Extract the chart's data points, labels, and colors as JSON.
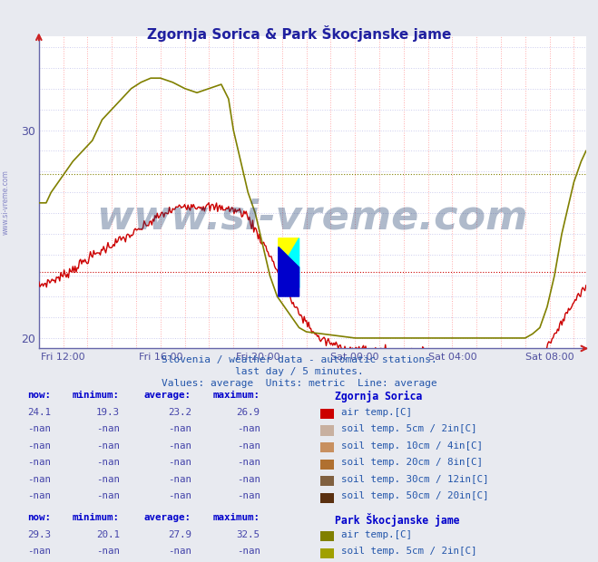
{
  "title": "Zgornja Sorica & Park Škocjanske jame",
  "bg_color": "#e8eaf0",
  "plot_bg_color": "#ffffff",
  "grid_color_h": "#ddddff",
  "grid_color_v": "#ffcccc",
  "x_tick_labels": [
    "Fri 12:00",
    "Fri 16:00",
    "Fri 20:00",
    "Sat 00:00",
    "Sat 04:00",
    "Sat 08:00"
  ],
  "ylim": [
    19.5,
    34.5
  ],
  "yticks": [
    20,
    30
  ],
  "ylabel_color": "#5050a0",
  "xlabel_color": "#5050a0",
  "title_color": "#2020a0",
  "avg_line_red": 23.2,
  "avg_line_olive": 27.9,
  "watermark": "www.si-vreme.com",
  "subtitle1": "Slovenia / weather data - automatic stations.",
  "subtitle2": "last day / 5 minutes.",
  "subtitle3": "Values: average  Units: metric  Line: average",
  "station1_name": "Zgornja Sorica",
  "station2_name": "Park Škocjanske jame",
  "station1_color": "#cc0000",
  "station2_color": "#808000",
  "table_header_color": "#0000cc",
  "table_value_color": "#4444aa",
  "zgornja_now": "24.1",
  "zgornja_min": "19.3",
  "zgornja_avg": "23.2",
  "zgornja_max": "26.9",
  "park_now": "29.3",
  "park_min": "20.1",
  "park_avg": "27.9",
  "park_max": "32.5",
  "nan_val": "-nan",
  "legend_colors_s1": [
    "#cc0000",
    "#c8b0a0",
    "#c89060",
    "#b07030",
    "#806040",
    "#5a3010"
  ],
  "legend_colors_s2": [
    "#808000",
    "#a0a000",
    "#909000",
    "#787800",
    "#606000",
    "#484800"
  ],
  "legend_labels": [
    "air temp.[C]",
    "soil temp. 5cm / 2in[C]",
    "soil temp. 10cm / 4in[C]",
    "soil temp. 20cm / 8in[C]",
    "soil temp. 30cm / 12in[C]",
    "soil temp. 50cm / 20in[C]"
  ]
}
